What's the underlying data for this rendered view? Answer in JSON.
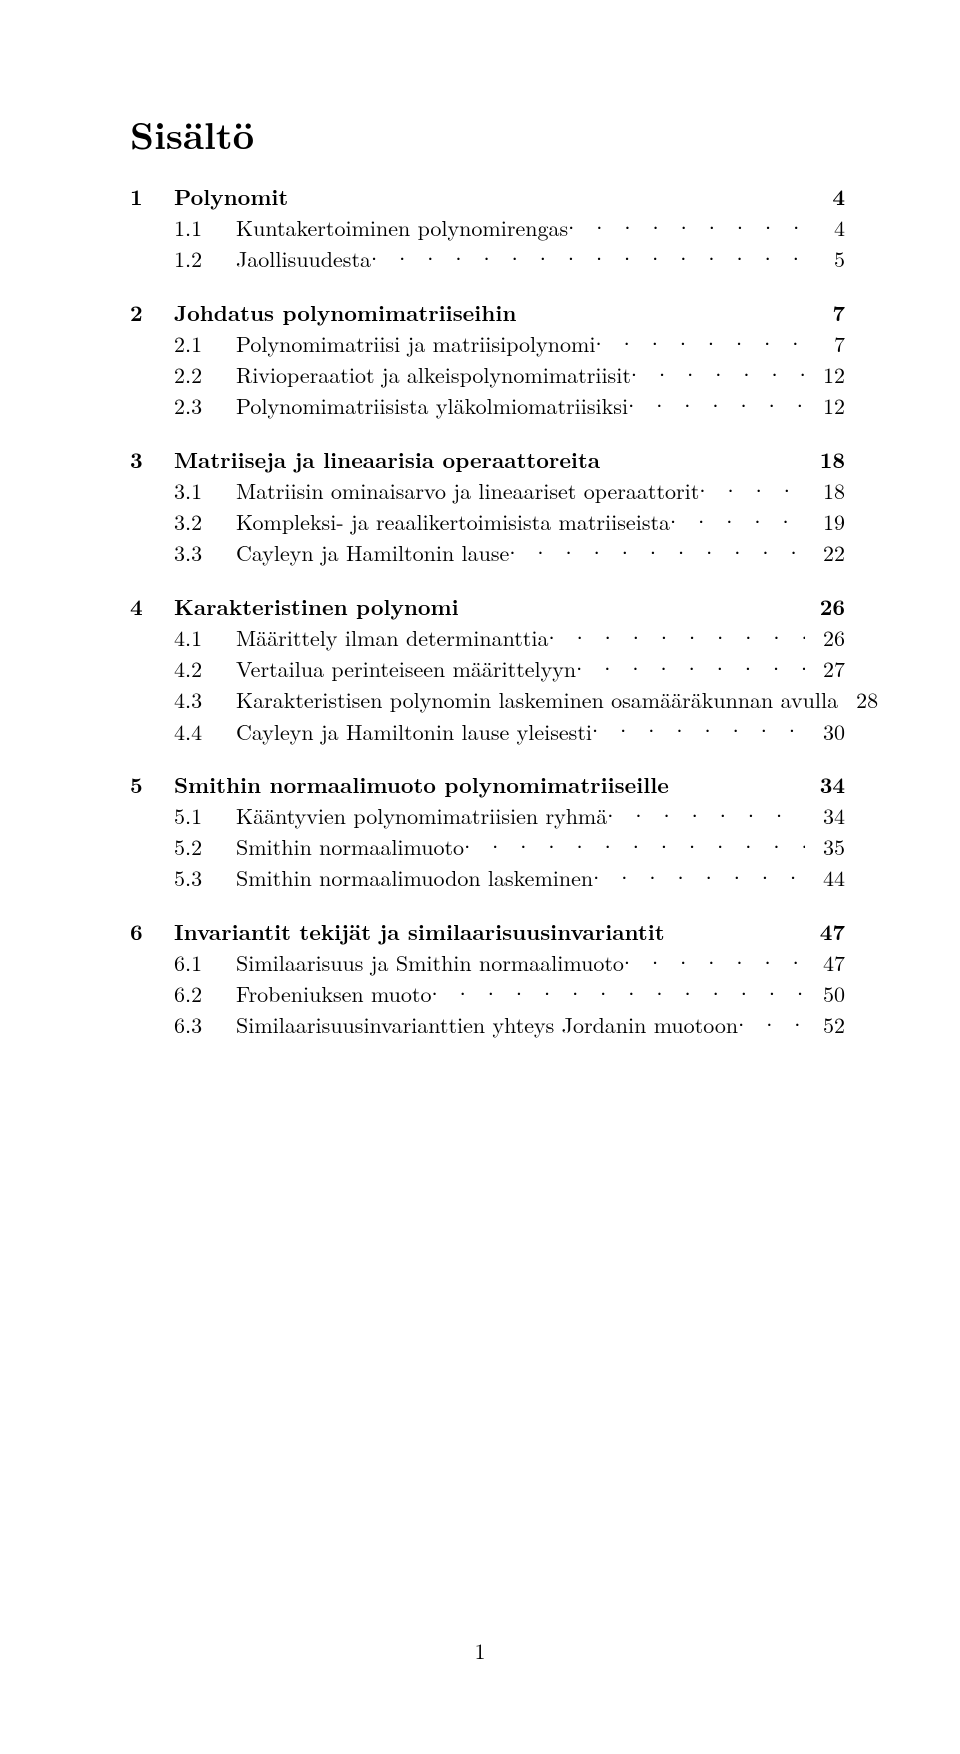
{
  "title": "Sisältö",
  "page_number": "1",
  "sections": [
    {
      "num": "1",
      "title": "Polynomit",
      "page": "4",
      "subs": [
        {
          "num": "1.1",
          "title": "Kuntakertoiminen polynomirengas",
          "page": "4"
        },
        {
          "num": "1.2",
          "title": "Jaollisuudesta",
          "page": "5"
        }
      ]
    },
    {
      "num": "2",
      "title": "Johdatus polynomimatriiseihin",
      "page": "7",
      "subs": [
        {
          "num": "2.1",
          "title": "Polynomimatriisi ja matriisipolynomi",
          "page": "7"
        },
        {
          "num": "2.2",
          "title": "Rivioperaatiot ja alkeispolynomimatriisit",
          "page": "12"
        },
        {
          "num": "2.3",
          "title": "Polynomimatriisista yläkolmiomatriisiksi",
          "page": "12"
        }
      ]
    },
    {
      "num": "3",
      "title": "Matriiseja ja lineaarisia operaattoreita",
      "page": "18",
      "subs": [
        {
          "num": "3.1",
          "title": "Matriisin ominaisarvo ja lineaariset operaattorit",
          "page": "18"
        },
        {
          "num": "3.2",
          "title": "Kompleksi- ja reaalikertoimisista matriiseista",
          "page": "19"
        },
        {
          "num": "3.3",
          "title": "Cayleyn ja Hamiltonin lause",
          "page": "22"
        }
      ]
    },
    {
      "num": "4",
      "title": "Karakteristinen polynomi",
      "page": "26",
      "subs": [
        {
          "num": "4.1",
          "title": "Määrittely ilman determinanttia",
          "page": "26"
        },
        {
          "num": "4.2",
          "title": "Vertailua perinteiseen määrittelyyn",
          "page": "27"
        },
        {
          "num": "4.3",
          "title": "Karakteristisen polynomin laskeminen osamääräkunnan avulla",
          "page": "28"
        },
        {
          "num": "4.4",
          "title": "Cayleyn ja Hamiltonin lause yleisesti",
          "page": "30"
        }
      ]
    },
    {
      "num": "5",
      "title": "Smithin normaalimuoto polynomimatriiseille",
      "page": "34",
      "subs": [
        {
          "num": "5.1",
          "title": "Kääntyvien polynomimatriisien ryhmä",
          "page": "34"
        },
        {
          "num": "5.2",
          "title": "Smithin normaalimuoto",
          "page": "35"
        },
        {
          "num": "5.3",
          "title": "Smithin normaalimuodon laskeminen",
          "page": "44"
        }
      ]
    },
    {
      "num": "6",
      "title": "Invariantit tekijät ja similaarisuusinvariantit",
      "page": "47",
      "subs": [
        {
          "num": "6.1",
          "title": "Similaarisuus ja Smithin normaalimuoto",
          "page": "47"
        },
        {
          "num": "6.2",
          "title": "Frobeniuksen muoto",
          "page": "50"
        },
        {
          "num": "6.3",
          "title": "Similaarisuusinvarianttien yhteys Jordanin muotoon",
          "page": "52"
        }
      ]
    }
  ]
}
